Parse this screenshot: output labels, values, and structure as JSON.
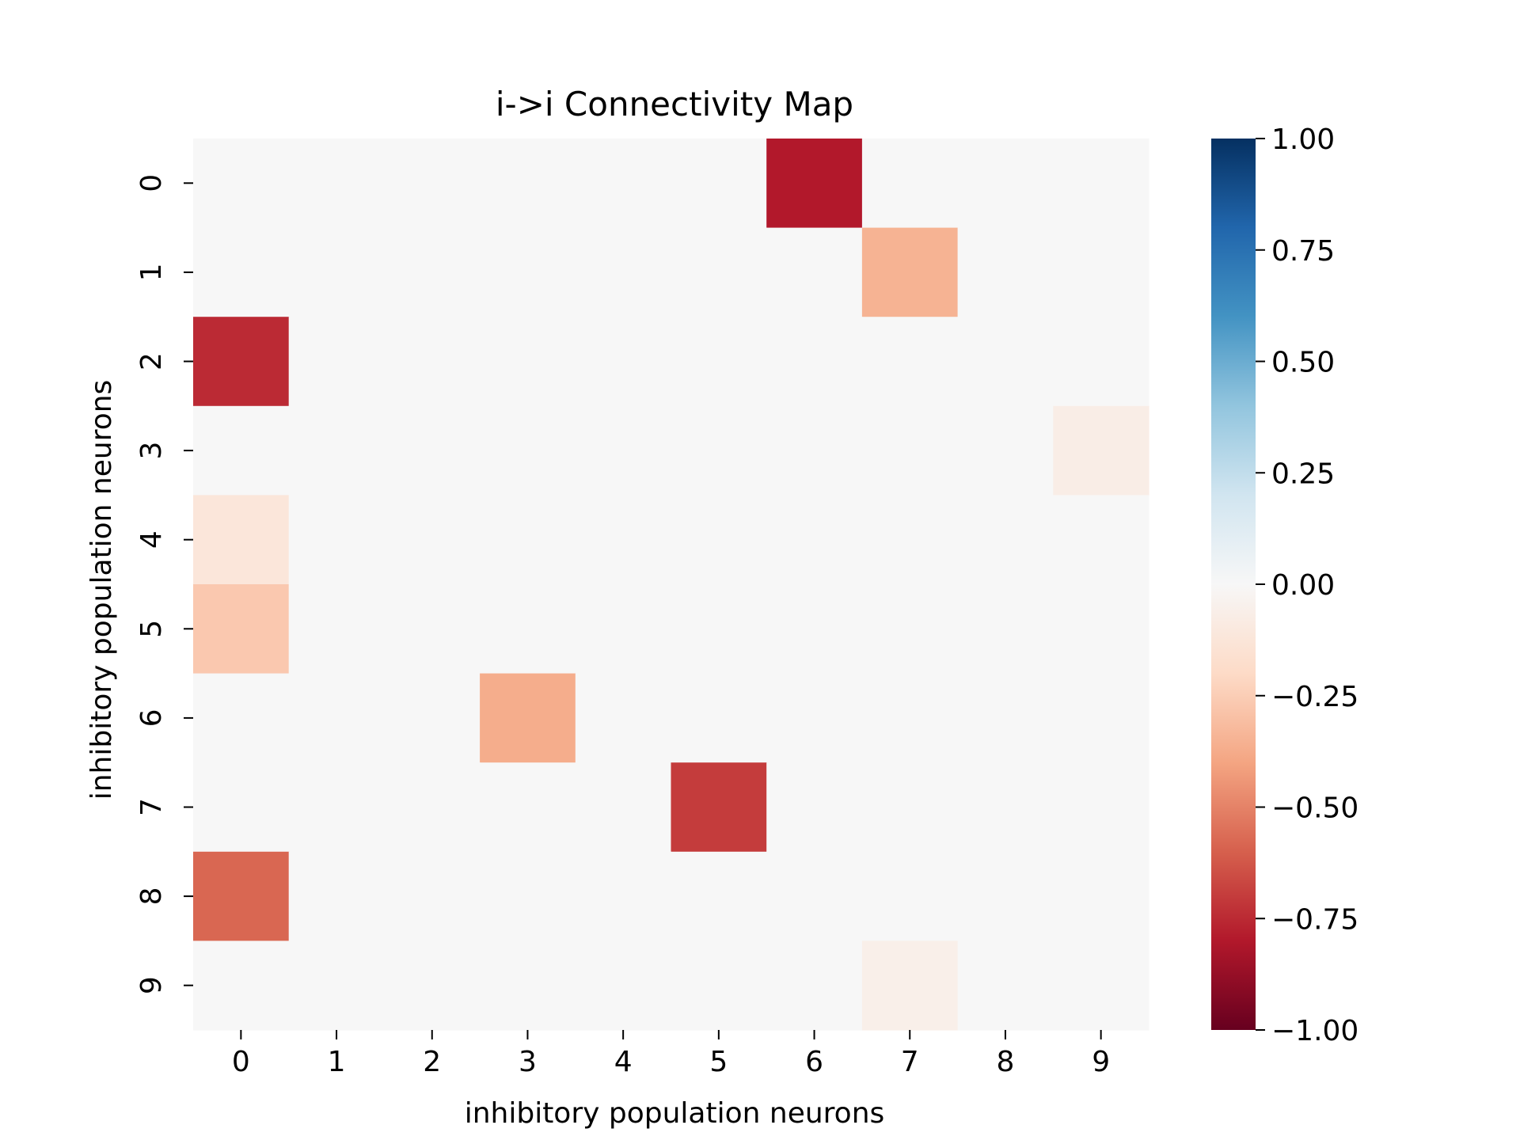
{
  "chart_data": {
    "type": "heatmap",
    "title": "i->i Connectivity Map",
    "xlabel": "inhibitory population neurons",
    "ylabel": "inhibitory population neurons",
    "x_categories": [
      "0",
      "1",
      "2",
      "3",
      "4",
      "5",
      "6",
      "7",
      "8",
      "9"
    ],
    "y_categories": [
      "0",
      "1",
      "2",
      "3",
      "4",
      "5",
      "6",
      "7",
      "8",
      "9"
    ],
    "values": [
      [
        0,
        0,
        0,
        0,
        0,
        0,
        -0.8,
        0,
        0,
        0
      ],
      [
        0,
        0,
        0,
        0,
        0,
        0,
        0,
        -0.35,
        0,
        0
      ],
      [
        -0.75,
        0,
        0,
        0,
        0,
        0,
        0,
        0,
        0,
        0
      ],
      [
        0,
        0,
        0,
        0,
        0,
        0,
        0,
        0,
        0,
        -0.07
      ],
      [
        -0.12,
        0,
        0,
        0,
        0,
        0,
        0,
        0,
        0,
        0
      ],
      [
        -0.27,
        0,
        0,
        0,
        0,
        0,
        0,
        0,
        0,
        0
      ],
      [
        0,
        0,
        0,
        -0.37,
        0,
        0,
        0,
        0,
        0,
        0
      ],
      [
        0,
        0,
        0,
        0,
        0,
        -0.7,
        0,
        0,
        0,
        0
      ],
      [
        -0.58,
        0,
        0,
        0,
        0,
        0,
        0,
        0,
        0,
        0
      ],
      [
        0,
        0,
        0,
        0,
        0,
        0,
        0,
        -0.06,
        0,
        0
      ]
    ],
    "colorscale": "RdBu",
    "vmin": -1.0,
    "vmax": 1.0,
    "colorbar_ticks": [
      "1.00",
      "0.75",
      "0.50",
      "0.25",
      "0.00",
      "−0.25",
      "−0.50",
      "−0.75",
      "−1.00"
    ],
    "colorbar_tick_values": [
      1.0,
      0.75,
      0.5,
      0.25,
      0.0,
      -0.25,
      -0.5,
      -0.75,
      -1.0
    ],
    "colorbar_stops": [
      "#67001f",
      "#b2182b",
      "#d6604d",
      "#f4a582",
      "#fddbc7",
      "#f7f7f7",
      "#d1e5f0",
      "#92c5de",
      "#4393c3",
      "#2166ac",
      "#053061"
    ],
    "grid": false
  }
}
